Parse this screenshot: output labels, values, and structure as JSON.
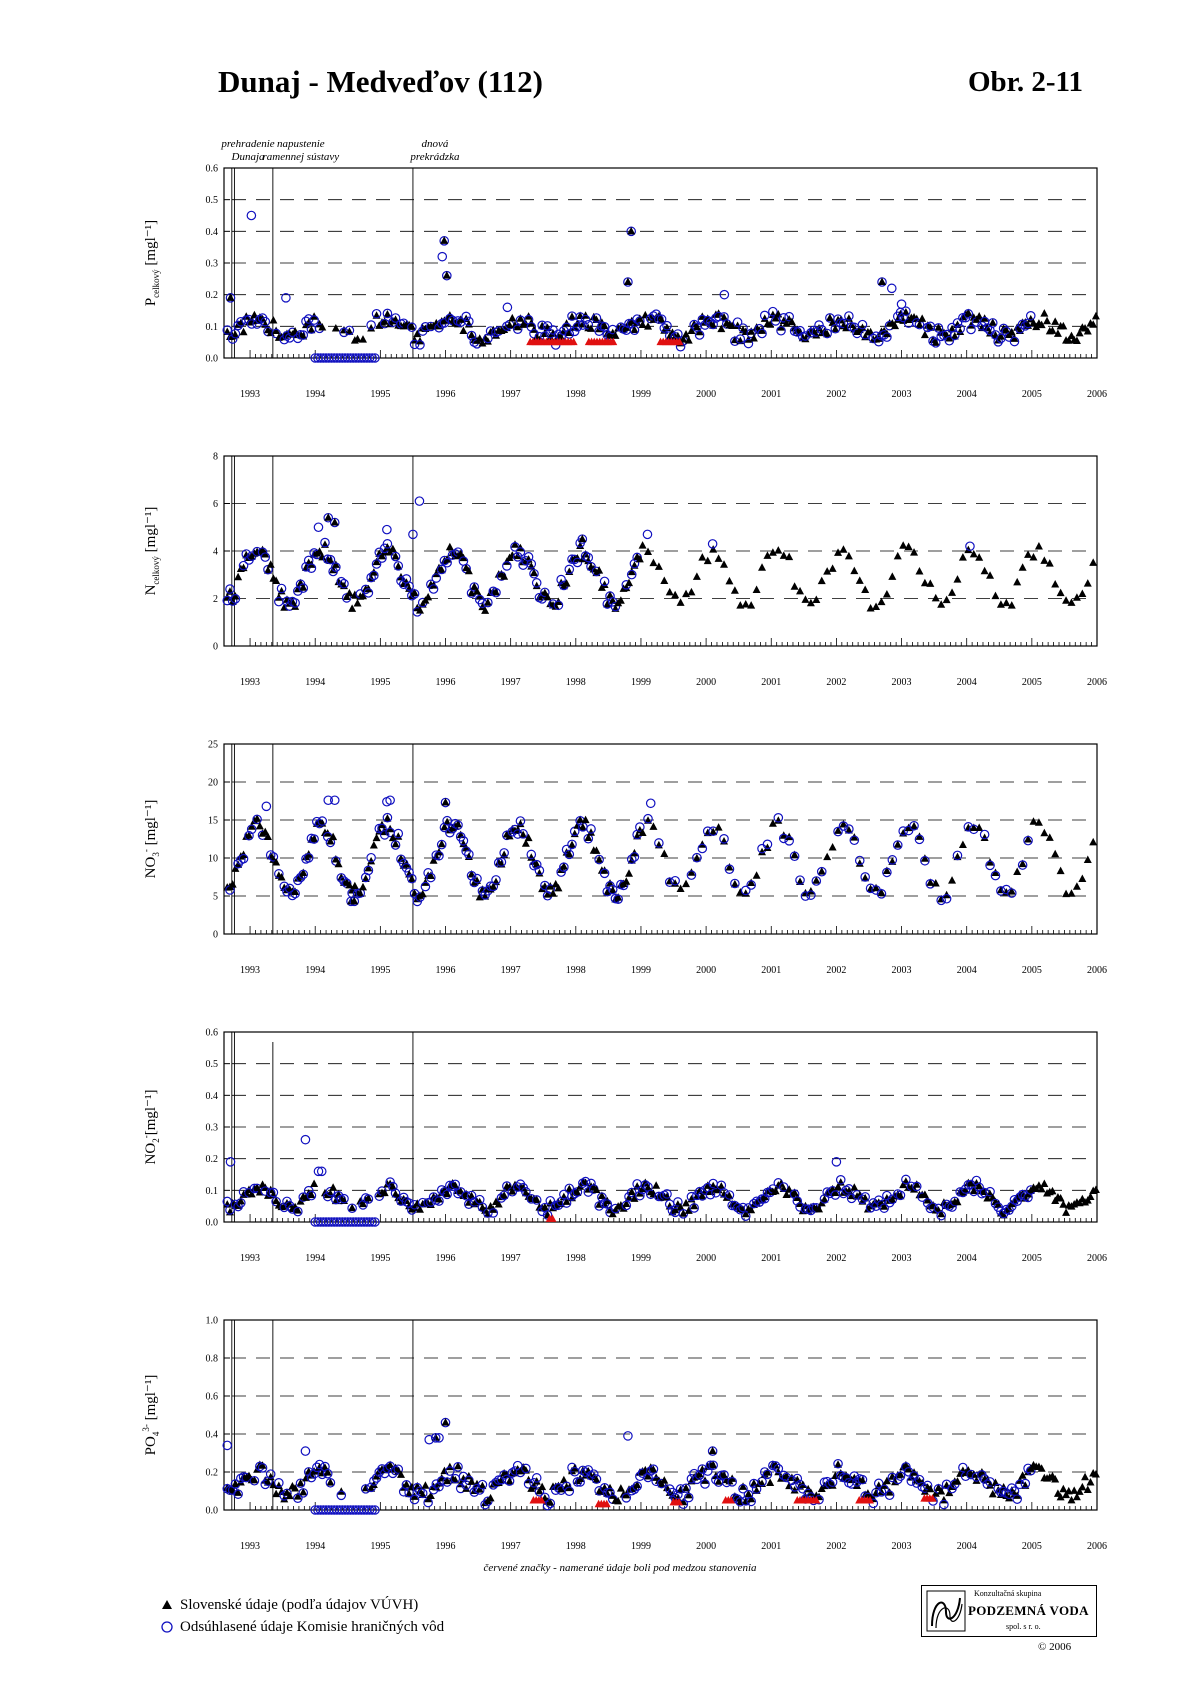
{
  "title": "Dunaj - Medveďov (112)",
  "figure_number": "Obr. 2-11",
  "footnote": "červené značky - namerané údaje boli pod medzou stanovenia",
  "legend": {
    "triangle_label": "Slovenské údaje (podľa údajov VÚVH)",
    "circle_label": "Odsúhlasené údaje Komisie hraničných vôd"
  },
  "colors": {
    "slovak": "#000000",
    "commission": "#1010c0",
    "below_limit": "#e01010",
    "grid": "#000000"
  },
  "logo": {
    "top": "Konzultačná skupina",
    "main": "PODZEMNÁ VODA",
    "bottom": "spol. s r. o."
  },
  "copyright": "© 2006",
  "annotations": [
    {
      "line1": "prehradenie",
      "line2": "Dunaja",
      "year": 1992.8
    },
    {
      "line1": "napustenie",
      "line2": "ramennej sústavy",
      "year": 1993.35
    },
    {
      "line1": "dnová",
      "line2": "prekrádzka",
      "year": 1995.5
    }
  ],
  "chart_data": [
    {
      "type": "scatter",
      "id": "p",
      "ylabel_main": "P",
      "ylabel_sub": "celkový",
      "ylabel_sup": "",
      "ylabel_unit": " [mgl⁻¹]",
      "ylim": [
        0,
        0.6
      ],
      "yticks": [
        "0.0",
        "0.1",
        "0.2",
        "0.3",
        "0.4",
        "0.5",
        "0.6"
      ],
      "xlim": [
        1992.6,
        2006.0
      ],
      "xticks": [
        "1993",
        "1994",
        "1995",
        "1996",
        "1997",
        "1998",
        "1999",
        "2000",
        "2001",
        "2002",
        "2003",
        "2004",
        "2005",
        "2006"
      ],
      "model": {
        "base": 0.095,
        "amp": 0.025,
        "noise": 0.025
      },
      "spikes": [
        [
          1993.02,
          0.45
        ],
        [
          1993.55,
          0.19
        ],
        [
          1995.95,
          0.32
        ],
        [
          1995.98,
          0.37
        ],
        [
          1996.02,
          0.26
        ],
        [
          1998.85,
          0.4
        ],
        [
          1998.8,
          0.24
        ],
        [
          2000.28,
          0.2
        ],
        [
          2002.7,
          0.24
        ],
        [
          2002.85,
          0.22
        ],
        [
          2003.0,
          0.17
        ],
        [
          1992.7,
          0.19
        ],
        [
          1996.95,
          0.16
        ]
      ],
      "zeros": [
        1994.0,
        1994.95
      ],
      "below_limit": [
        [
          1997.3,
          1998.0,
          0.05
        ],
        [
          1998.2,
          1998.6,
          0.05
        ],
        [
          1999.3,
          1999.6,
          0.05
        ]
      ],
      "commission_range": [
        1992.65,
        2005.0
      ],
      "slovak_range": [
        1992.65,
        2006.0
      ]
    },
    {
      "type": "scatter",
      "id": "n",
      "ylabel_main": "N",
      "ylabel_sub": "celkový",
      "ylabel_sup": "",
      "ylabel_unit": " [mgl⁻¹]",
      "ylim": [
        0,
        8
      ],
      "yticks": [
        "0",
        "2",
        "4",
        "6",
        "8"
      ],
      "xlim": [
        1992.6,
        2006.0
      ],
      "xticks": [
        "1993",
        "1994",
        "1995",
        "1996",
        "1997",
        "1998",
        "1999",
        "2000",
        "2001",
        "2002",
        "2003",
        "2004",
        "2005",
        "2006"
      ],
      "model": {
        "base": 2.9,
        "amp": 1.1,
        "noise": 0.35
      },
      "spikes": [
        [
          1994.2,
          5.4
        ],
        [
          1994.3,
          5.2
        ],
        [
          1994.05,
          5.0
        ],
        [
          1995.1,
          4.9
        ],
        [
          1995.6,
          6.1
        ],
        [
          1995.5,
          4.7
        ],
        [
          1998.1,
          4.5
        ],
        [
          1999.1,
          4.7
        ],
        [
          2000.1,
          4.3
        ],
        [
          2004.05,
          4.2
        ]
      ],
      "zeros": [],
      "below_limit": [],
      "commission_range": [
        1992.65,
        1999.0
      ],
      "slovak_range": [
        1992.65,
        2006.0
      ]
    },
    {
      "type": "scatter",
      "id": "no3",
      "ylabel_main": "NO",
      "ylabel_sub": "3",
      "ylabel_sup": "-",
      "ylabel_unit": " [mgl⁻¹]",
      "ylim": [
        0,
        25
      ],
      "yticks": [
        "0",
        "5",
        "10",
        "15",
        "20",
        "25"
      ],
      "xlim": [
        1992.6,
        2006.0
      ],
      "xticks": [
        "1993",
        "1994",
        "1995",
        "1996",
        "1997",
        "1998",
        "1999",
        "2000",
        "2001",
        "2002",
        "2003",
        "2004",
        "2005",
        "2006"
      ],
      "model": {
        "base": 9.8,
        "amp": 4.5,
        "noise": 1.0
      },
      "spikes": [
        [
          1993.25,
          16.8
        ],
        [
          1994.2,
          17.6
        ],
        [
          1994.3,
          17.6
        ],
        [
          1995.1,
          17.4
        ],
        [
          1995.15,
          17.6
        ],
        [
          1996.0,
          17.3
        ],
        [
          1999.15,
          17.2
        ],
        [
          1994.55,
          4.3
        ],
        [
          1994.6,
          4.3
        ]
      ],
      "zeros": [],
      "below_limit": [],
      "commission_range": [
        1992.65,
        2005.0
      ],
      "slovak_range": [
        1992.65,
        2006.0
      ]
    },
    {
      "type": "scatter",
      "id": "no2",
      "ylabel_main": "NO",
      "ylabel_sub": "2",
      "ylabel_sup": "-",
      "ylabel_unit": "[mgl⁻¹]",
      "ylim": [
        0,
        0.6
      ],
      "yticks": [
        "0.0",
        "0.1",
        "0.2",
        "0.3",
        "0.4",
        "0.5",
        "0.6"
      ],
      "xlim": [
        1992.6,
        2006.0
      ],
      "xticks": [
        "1993",
        "1994",
        "1995",
        "1996",
        "1997",
        "1998",
        "1999",
        "2000",
        "2001",
        "2002",
        "2003",
        "2004",
        "2005",
        "2006"
      ],
      "model": {
        "base": 0.075,
        "amp": 0.035,
        "noise": 0.02
      },
      "spikes": [
        [
          1993.85,
          0.26
        ],
        [
          1992.7,
          0.19
        ],
        [
          2002.0,
          0.19
        ],
        [
          1994.05,
          0.16
        ],
        [
          1994.1,
          0.16
        ]
      ],
      "zeros": [
        1994.0,
        1994.95
      ],
      "below_limit": [
        [
          1997.6,
          1997.65,
          0.01
        ]
      ],
      "commission_range": [
        1992.65,
        2005.0
      ],
      "slovak_range": [
        1992.65,
        2006.0
      ]
    },
    {
      "type": "scatter",
      "id": "po4",
      "ylabel_main": "PO",
      "ylabel_sub": "4",
      "ylabel_sup": "3-",
      "ylabel_unit": " [mgl⁻¹]",
      "ylim": [
        0,
        1.0
      ],
      "yticks": [
        "0.0",
        "0.2",
        "0.4",
        "0.6",
        "0.8",
        "1.0"
      ],
      "xlim": [
        1992.6,
        2006.0
      ],
      "xticks": [
        "1993",
        "1994",
        "1995",
        "1996",
        "1997",
        "1998",
        "1999",
        "2000",
        "2001",
        "2002",
        "2003",
        "2004",
        "2005",
        "2006"
      ],
      "model": {
        "base": 0.14,
        "amp": 0.06,
        "noise": 0.045
      },
      "spikes": [
        [
          1996.0,
          0.46
        ],
        [
          1995.85,
          0.38
        ],
        [
          1995.9,
          0.38
        ],
        [
          1995.75,
          0.37
        ],
        [
          1998.8,
          0.39
        ],
        [
          2000.1,
          0.31
        ],
        [
          1993.85,
          0.31
        ],
        [
          1992.65,
          0.34
        ]
      ],
      "zeros": [
        1994.0,
        1994.95
      ],
      "below_limit": [
        [
          1997.35,
          1997.5,
          0.05
        ],
        [
          1998.35,
          1998.5,
          0.03
        ],
        [
          1999.5,
          1999.6,
          0.04
        ],
        [
          2000.3,
          2000.4,
          0.05
        ],
        [
          2001.4,
          2001.7,
          0.05
        ],
        [
          2002.35,
          2002.55,
          0.05
        ],
        [
          2003.35,
          2003.5,
          0.06
        ]
      ],
      "commission_range": [
        1992.65,
        2005.0
      ],
      "slovak_range": [
        1992.65,
        2006.0
      ]
    }
  ]
}
